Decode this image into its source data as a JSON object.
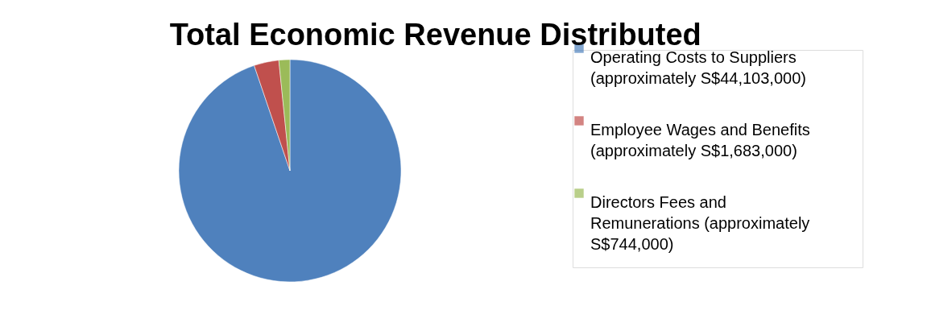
{
  "chart_data": {
    "type": "pie",
    "title": "Total Economic Revenue Distributed",
    "categories": [
      "Operating Costs to Suppliers (approximately S$44,103,000)",
      "Employee Wages and Benefits (approximately S$1,683,000)",
      "Directors Fees and Remunerations (approximately S$744,000)"
    ],
    "values": [
      44103000,
      1683000,
      744000
    ],
    "colors": [
      "#4f81bd",
      "#c0504d",
      "#9bbb59"
    ],
    "legend": "right"
  }
}
